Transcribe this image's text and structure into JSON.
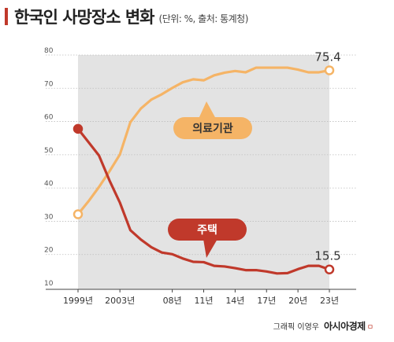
{
  "header": {
    "title": "한국인 사망장소 변화",
    "subtitle": "(단위: %, 출처: 통계청)"
  },
  "credit": {
    "text": "그래픽 이영우",
    "brand": "아시아경제",
    "mark": "ㅁ"
  },
  "colors": {
    "medical": "#f5b466",
    "home": "#c0392b",
    "shade": "#e3e3e3",
    "grid": "#bdbdbd"
  },
  "chart_data": {
    "type": "line",
    "title": "한국인 사망장소 변화",
    "ylim": [
      10,
      80
    ],
    "yticks": [
      "10",
      "20",
      "30",
      "40",
      "50",
      "60",
      "70",
      "80"
    ],
    "x": [
      1999,
      2000,
      2001,
      2002,
      2003,
      2004,
      2005,
      2006,
      2007,
      2008,
      2009,
      2010,
      2011,
      2012,
      2013,
      2014,
      2015,
      2016,
      2017,
      2018,
      2019,
      2020,
      2021,
      2022,
      2023
    ],
    "xlim": [
      1999,
      2023
    ],
    "xticks": [
      {
        "x": 1999,
        "label": "1999년"
      },
      {
        "x": 2003,
        "label": "2003년"
      },
      {
        "x": 2008,
        "label": "08년"
      },
      {
        "x": 2011,
        "label": "11년"
      },
      {
        "x": 2014,
        "label": "14년"
      },
      {
        "x": 2017,
        "label": "17년"
      },
      {
        "x": 2020,
        "label": "20년"
      },
      {
        "x": 2023,
        "label": "23년"
      }
    ],
    "series": [
      {
        "name": "의료기관",
        "values": [
          32.1,
          36,
          40.3,
          45,
          50.1,
          59.8,
          63.9,
          66.6,
          68.2,
          70.1,
          71.8,
          72.7,
          72.4,
          73.9,
          74.7,
          75.2,
          74.8,
          76.2,
          76.2,
          76.2,
          76.2,
          75.6,
          74.8,
          74.8,
          75.4
        ],
        "end_label": "75.4"
      },
      {
        "name": "주택",
        "values": [
          57.8,
          53.8,
          49.8,
          42.3,
          35.6,
          27.3,
          24.5,
          22.2,
          20.6,
          20.1,
          18.8,
          17.8,
          17.7,
          16.6,
          16.4,
          15.9,
          15.3,
          15.3,
          14.9,
          14.3,
          14.4,
          15.6,
          16.6,
          16.6,
          15.5
        ],
        "end_label": "15.5"
      }
    ],
    "annotations": [
      {
        "text": "의료기관",
        "series": "의료기관"
      },
      {
        "text": "주택",
        "series": "주택"
      }
    ]
  }
}
